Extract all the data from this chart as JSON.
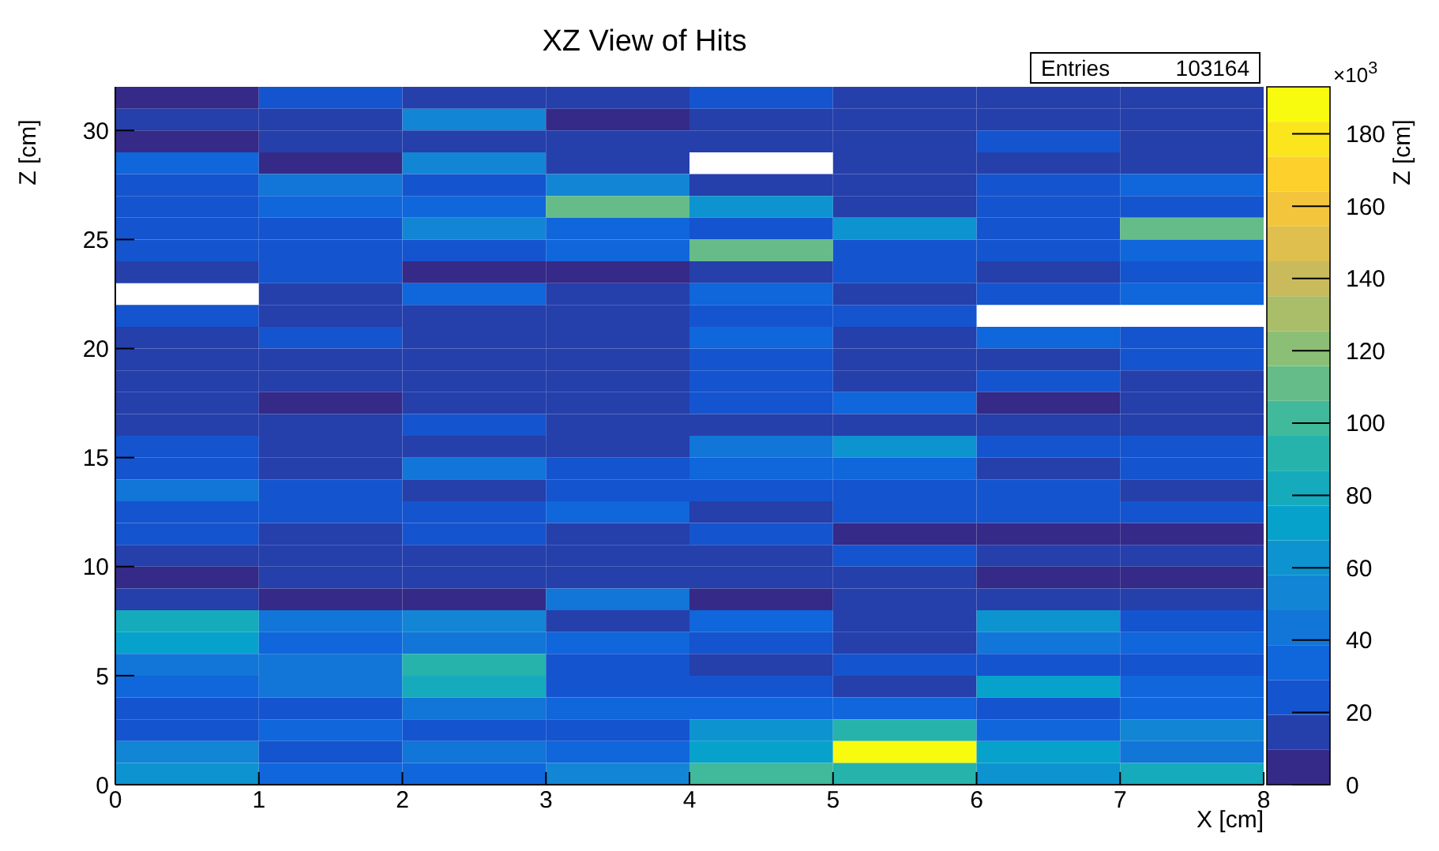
{
  "chart_data": {
    "type": "heatmap",
    "title": "XZ View of Hits",
    "xlabel": "X [cm]",
    "ylabel": "Z [cm]",
    "clabel": "Z [cm]",
    "annotations": [
      "Entries",
      "103164",
      "×10$^{3}$"
    ],
    "xlim": [
      0,
      8
    ],
    "xticks": [
      0,
      1,
      2,
      3,
      4,
      5,
      6,
      7,
      8
    ],
    "ylim": [
      0,
      32
    ],
    "yticks": [
      0,
      5,
      10,
      15,
      20,
      25,
      30
    ],
    "clim": [
      0,
      193
    ],
    "cticks": [
      0,
      20,
      40,
      60,
      80,
      100,
      120,
      140,
      160,
      180
    ],
    "cells": [
      [
        5,
        25,
        15,
        15,
        25,
        15,
        15,
        15
      ],
      [
        15,
        15,
        53,
        5,
        15,
        15,
        15,
        15
      ],
      [
        5,
        15,
        15,
        15,
        15,
        15,
        25,
        15
      ],
      [
        34,
        5,
        53,
        15,
        null,
        15,
        15,
        15
      ],
      [
        25,
        43,
        25,
        53,
        15,
        15,
        25,
        34
      ],
      [
        25,
        34,
        34,
        111,
        63,
        15,
        25,
        25
      ],
      [
        25,
        25,
        53,
        34,
        25,
        63,
        25,
        111
      ],
      [
        25,
        25,
        25,
        34,
        111,
        25,
        25,
        34
      ],
      [
        15,
        25,
        5,
        5,
        15,
        25,
        15,
        25
      ],
      [
        null,
        15,
        34,
        15,
        34,
        15,
        25,
        34
      ],
      [
        25,
        15,
        15,
        15,
        25,
        25,
        null,
        null
      ],
      [
        15,
        25,
        15,
        15,
        34,
        15,
        34,
        25
      ],
      [
        15,
        15,
        15,
        15,
        25,
        15,
        15,
        25
      ],
      [
        15,
        15,
        15,
        15,
        25,
        15,
        25,
        15
      ],
      [
        15,
        5,
        15,
        15,
        25,
        34,
        5,
        15
      ],
      [
        15,
        15,
        25,
        15,
        15,
        15,
        15,
        15
      ],
      [
        25,
        15,
        15,
        15,
        43,
        63,
        25,
        25
      ],
      [
        25,
        15,
        43,
        25,
        34,
        34,
        15,
        25
      ],
      [
        43,
        25,
        15,
        25,
        25,
        25,
        25,
        15
      ],
      [
        25,
        25,
        25,
        34,
        15,
        25,
        25,
        25
      ],
      [
        25,
        15,
        25,
        15,
        25,
        5,
        5,
        5
      ],
      [
        15,
        15,
        15,
        15,
        15,
        25,
        15,
        15
      ],
      [
        5,
        15,
        15,
        15,
        15,
        15,
        5,
        5
      ],
      [
        15,
        5,
        5,
        43,
        5,
        15,
        15,
        15
      ],
      [
        82,
        43,
        53,
        15,
        34,
        15,
        63,
        25
      ],
      [
        72,
        34,
        43,
        34,
        25,
        15,
        43,
        34
      ],
      [
        43,
        43,
        92,
        25,
        15,
        25,
        25,
        25
      ],
      [
        34,
        43,
        82,
        25,
        25,
        15,
        72,
        34
      ],
      [
        25,
        25,
        43,
        34,
        34,
        34,
        25,
        34
      ],
      [
        25,
        34,
        25,
        25,
        63,
        92,
        34,
        53
      ],
      [
        53,
        25,
        43,
        34,
        72,
        188,
        72,
        43
      ],
      [
        63,
        34,
        34,
        53,
        101,
        92,
        63,
        82
      ]
    ]
  }
}
